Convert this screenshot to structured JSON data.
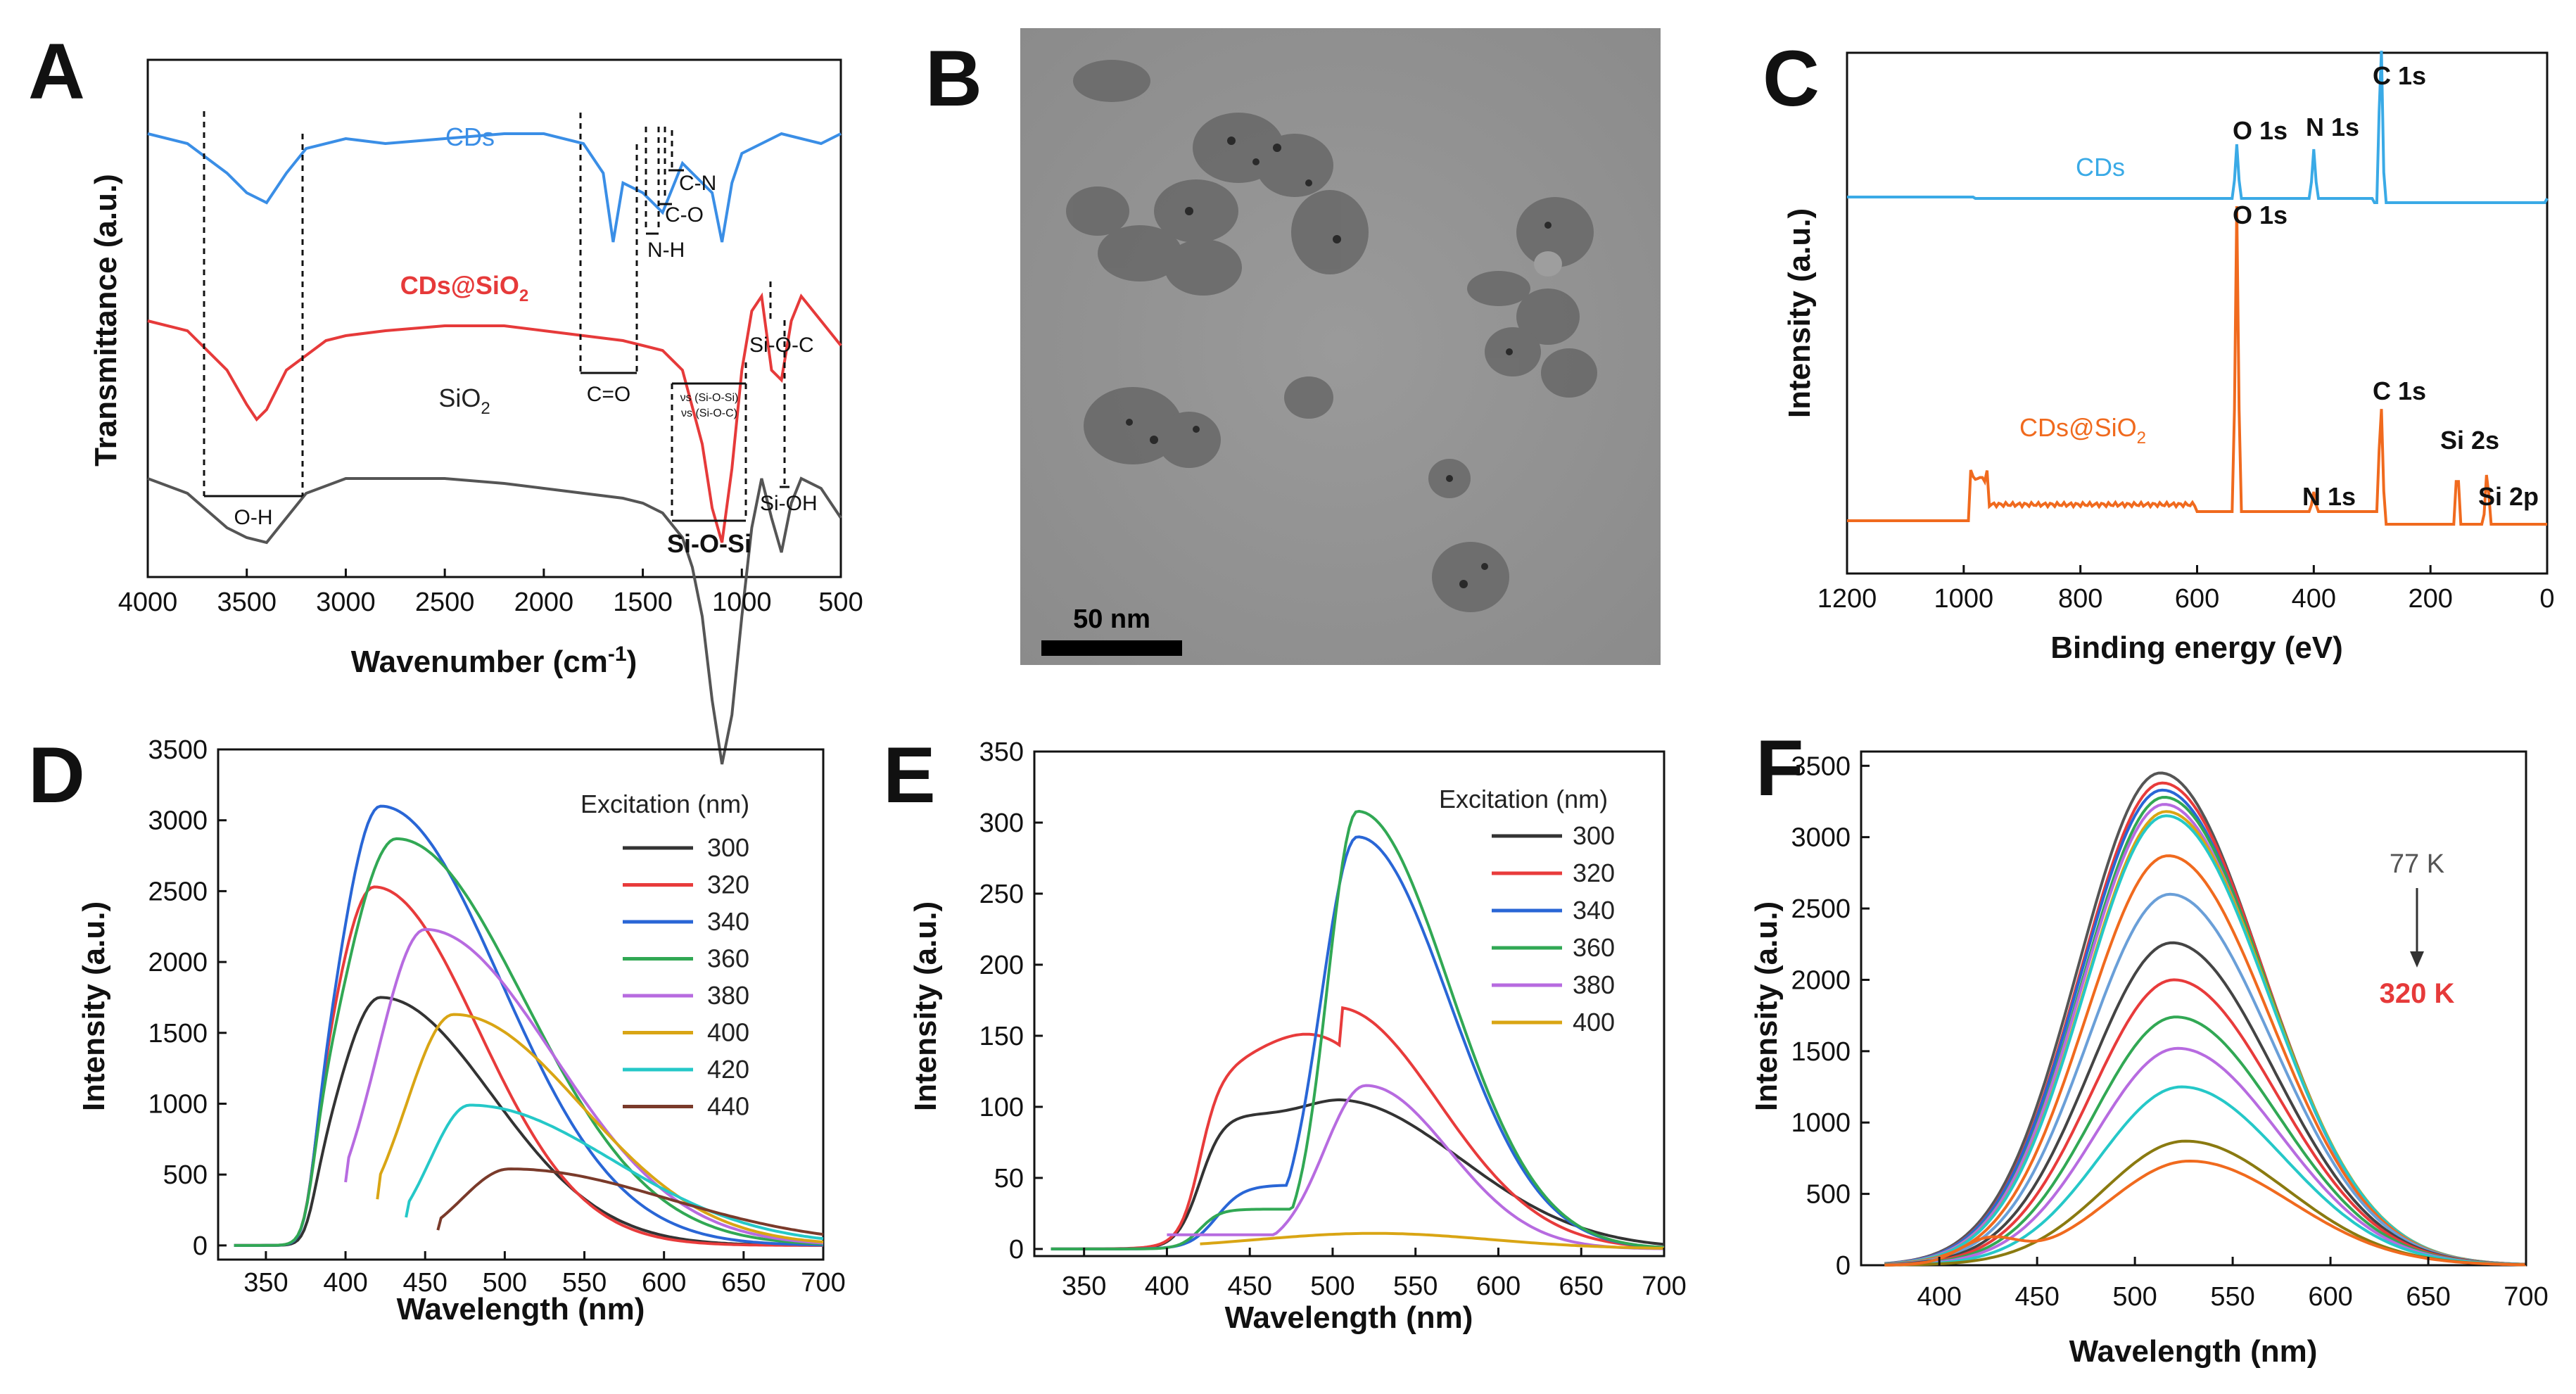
{
  "panel_labels": [
    "A",
    "B",
    "C",
    "D",
    "E",
    "F"
  ],
  "chart_data": [
    {
      "id": "A",
      "type": "line",
      "xlabel_main": "Wavenumber (cm",
      "xlabel_sup": "-1",
      "xlabel_tail": ")",
      "ylabel": "Transmittance (a.u.)",
      "xlim": [
        4000,
        500
      ],
      "xticks": [
        "4000",
        "3500",
        "3000",
        "2500",
        "2000",
        "1500",
        "1000",
        "500"
      ],
      "series": [
        {
          "name": "CDs",
          "color": "#3a8ee6",
          "offset": 0.9,
          "x": [
            4000,
            3800,
            3600,
            3500,
            3400,
            3300,
            3200,
            3000,
            2800,
            2500,
            2200,
            2000,
            1800,
            1700,
            1650,
            1600,
            1500,
            1400,
            1300,
            1200,
            1150,
            1100,
            1050,
            1000,
            900,
            800,
            700,
            600,
            500
          ],
          "y": [
            0,
            -0.02,
            -0.08,
            -0.12,
            -0.14,
            -0.08,
            -0.03,
            -0.01,
            -0.02,
            -0.01,
            0,
            0,
            -0.02,
            -0.08,
            -0.22,
            -0.1,
            -0.12,
            -0.16,
            -0.06,
            -0.1,
            -0.12,
            -0.22,
            -0.1,
            -0.04,
            -0.02,
            0,
            -0.01,
            -0.02,
            0
          ]
        },
        {
          "name": "CDs@SiO2",
          "name_main": "CDs@SiO",
          "name_sub": "2",
          "color": "#e63a3a",
          "offset": 0.52,
          "x": [
            4000,
            3800,
            3600,
            3500,
            3450,
            3400,
            3300,
            3100,
            3000,
            2800,
            2500,
            2200,
            2000,
            1800,
            1600,
            1500,
            1400,
            1300,
            1200,
            1150,
            1100,
            1050,
            1000,
            950,
            900,
            850,
            800,
            750,
            700,
            600,
            500
          ],
          "y": [
            0,
            -0.02,
            -0.1,
            -0.17,
            -0.2,
            -0.18,
            -0.1,
            -0.04,
            -0.03,
            -0.02,
            -0.01,
            -0.01,
            -0.02,
            -0.03,
            -0.04,
            -0.05,
            -0.06,
            -0.1,
            -0.25,
            -0.38,
            -0.45,
            -0.3,
            -0.1,
            0.02,
            0.05,
            -0.1,
            -0.12,
            0.0,
            0.05,
            0.0,
            -0.05
          ]
        },
        {
          "name": "SiO2",
          "name_main": "SiO",
          "name_sub": "2",
          "color": "#555555",
          "offset": 0.2,
          "x": [
            4000,
            3800,
            3600,
            3500,
            3400,
            3300,
            3200,
            3000,
            2800,
            2500,
            2200,
            2000,
            1800,
            1600,
            1500,
            1400,
            1300,
            1250,
            1200,
            1150,
            1100,
            1050,
            1000,
            950,
            900,
            850,
            800,
            750,
            700,
            600,
            500
          ],
          "y": [
            0,
            -0.03,
            -0.1,
            -0.12,
            -0.13,
            -0.08,
            -0.03,
            0.0,
            0.0,
            0.0,
            -0.01,
            -0.02,
            -0.03,
            -0.04,
            -0.05,
            -0.07,
            -0.12,
            -0.18,
            -0.28,
            -0.45,
            -0.58,
            -0.48,
            -0.28,
            -0.1,
            0.0,
            -0.08,
            -0.15,
            -0.05,
            0.0,
            -0.02,
            -0.08
          ]
        }
      ],
      "annotations": [
        "O-H",
        "C=O",
        "N-H",
        "C-O",
        "C-N",
        "Si-O-C",
        "Si-OH",
        "Si-O-Si",
        "νs (Si-O-Si)",
        "νs (Si-O-C)"
      ]
    },
    {
      "id": "C",
      "type": "line",
      "xlabel": "Binding energy (eV)",
      "ylabel": "Intensity (a.u.)",
      "xlim": [
        1200,
        0
      ],
      "xticks": [
        "1200",
        "1000",
        "800",
        "600",
        "400",
        "200",
        "0"
      ],
      "series": [
        {
          "name": "CDs",
          "color": "#3aaae6",
          "peaks": [
            {
              "label": "O 1s",
              "x": 532,
              "h": 0.11
            },
            {
              "label": "N 1s",
              "x": 400,
              "h": 0.1
            },
            {
              "label": "C 1s",
              "x": 285,
              "h": 0.37
            }
          ]
        },
        {
          "name": "CDs@SiO2",
          "name_main": "CDs@SiO",
          "name_sub": "2",
          "color": "#f06a1e",
          "peaks": [
            {
              "label": "O 1s",
              "x": 532,
              "h": 0.62
            },
            {
              "label": "N 1s",
              "x": 400,
              "h": 0.04
            },
            {
              "label": "C 1s",
              "x": 285,
              "h": 0.25
            },
            {
              "label": "Si 2s",
              "x": 154,
              "h": 0.13
            },
            {
              "label": "Si 2p",
              "x": 103,
              "h": 0.12
            }
          ]
        }
      ]
    },
    {
      "id": "D",
      "type": "line",
      "xlabel": "Wavelength (nm)",
      "ylabel": "Intensity (a.u.)",
      "xlim": [
        320,
        700
      ],
      "ylim": [
        -100,
        3500
      ],
      "xticks": [
        350,
        400,
        450,
        500,
        550,
        600,
        650,
        700
      ],
      "yticks": [
        0,
        500,
        1000,
        1500,
        2000,
        2500,
        3000,
        3500
      ],
      "legend_title": "Excitation (nm)",
      "series": [
        {
          "name": "300",
          "color": "#333333",
          "start": 330,
          "peak": 1750,
          "center": 422,
          "wl": 20,
          "wr": 70
        },
        {
          "name": "320",
          "color": "#e83b3b",
          "start": 330,
          "peak": 2530,
          "center": 418,
          "wl": 20,
          "wr": 65
        },
        {
          "name": "340",
          "color": "#2966d6",
          "start": 330,
          "peak": 3100,
          "center": 422,
          "wl": 20,
          "wr": 75
        },
        {
          "name": "360",
          "color": "#31a854",
          "start": 330,
          "peak": 2870,
          "center": 432,
          "wl": 25,
          "wr": 80
        },
        {
          "name": "380",
          "color": "#b76be0",
          "start": 400,
          "peak": 2230,
          "center": 450,
          "wl": 30,
          "wr": 80
        },
        {
          "name": "400",
          "color": "#d9a514",
          "start": 420,
          "peak": 1630,
          "center": 468,
          "wl": 30,
          "wr": 80
        },
        {
          "name": "420",
          "color": "#25c8c8",
          "start": 438,
          "peak": 990,
          "center": 478,
          "wl": 25,
          "wr": 90
        },
        {
          "name": "440",
          "color": "#7a3a2a",
          "start": 458,
          "peak": 540,
          "center": 503,
          "wl": 30,
          "wr": 100
        }
      ]
    },
    {
      "id": "E",
      "type": "line",
      "xlabel": "Wavelength (nm)",
      "ylabel": "Intensity (a.u.)",
      "xlim": [
        320,
        700
      ],
      "ylim": [
        -5,
        350
      ],
      "xticks": [
        350,
        400,
        450,
        500,
        550,
        600,
        650,
        700
      ],
      "yticks": [
        0,
        50,
        100,
        150,
        200,
        250,
        300,
        350
      ],
      "legend_title": "Excitation (nm)",
      "series": [
        {
          "name": "300",
          "color": "#333333",
          "start": 330,
          "peak": 105,
          "center": 505
        },
        {
          "name": "320",
          "color": "#e83b3b",
          "start": 330,
          "peak": 170,
          "center": 500
        },
        {
          "name": "340",
          "color": "#2966d6",
          "start": 330,
          "peak": 290,
          "center": 515
        },
        {
          "name": "360",
          "color": "#31a854",
          "start": 330,
          "peak": 308,
          "center": 515
        },
        {
          "name": "380",
          "color": "#b76be0",
          "start": 400,
          "peak": 115,
          "center": 520
        },
        {
          "name": "400",
          "color": "#d9a514",
          "start": 420,
          "peak": 11,
          "center": 525
        }
      ]
    },
    {
      "id": "F",
      "type": "line",
      "xlabel": "Wavelength (nm)",
      "ylabel": "Intensity (a.u.)",
      "xlim": [
        360,
        700
      ],
      "ylim": [
        0,
        3600
      ],
      "xticks": [
        400,
        450,
        500,
        550,
        600,
        650,
        700
      ],
      "yticks": [
        0,
        500,
        1000,
        1500,
        2000,
        2500,
        3000,
        3500
      ],
      "temp_high": "77 K",
      "temp_low": "320 K",
      "series": [
        {
          "color": "#555555",
          "peak": 3450,
          "center": 513
        },
        {
          "color": "#e83b3b",
          "peak": 3380,
          "center": 514
        },
        {
          "color": "#2966d6",
          "peak": 3330,
          "center": 514
        },
        {
          "color": "#31a854",
          "peak": 3280,
          "center": 515
        },
        {
          "color": "#b76be0",
          "peak": 3230,
          "center": 515
        },
        {
          "color": "#d9a514",
          "peak": 3180,
          "center": 516
        },
        {
          "color": "#25c8c8",
          "peak": 3150,
          "center": 516
        },
        {
          "color": "#f06a1e",
          "peak": 2870,
          "center": 517
        },
        {
          "color": "#6a9fd8",
          "peak": 2600,
          "center": 518
        },
        {
          "color": "#444444",
          "peak": 2260,
          "center": 519
        },
        {
          "color": "#e83b3b",
          "peak": 2000,
          "center": 520
        },
        {
          "color": "#31a854",
          "peak": 1740,
          "center": 521
        },
        {
          "color": "#b76be0",
          "peak": 1520,
          "center": 522
        },
        {
          "color": "#25c8c8",
          "peak": 1250,
          "center": 524
        },
        {
          "color": "#8a7a10",
          "peak": 870,
          "center": 526
        },
        {
          "color": "#f06a1e",
          "peak": 730,
          "center": 528
        }
      ]
    }
  ],
  "image_B": {
    "scale_label": "50 nm"
  }
}
